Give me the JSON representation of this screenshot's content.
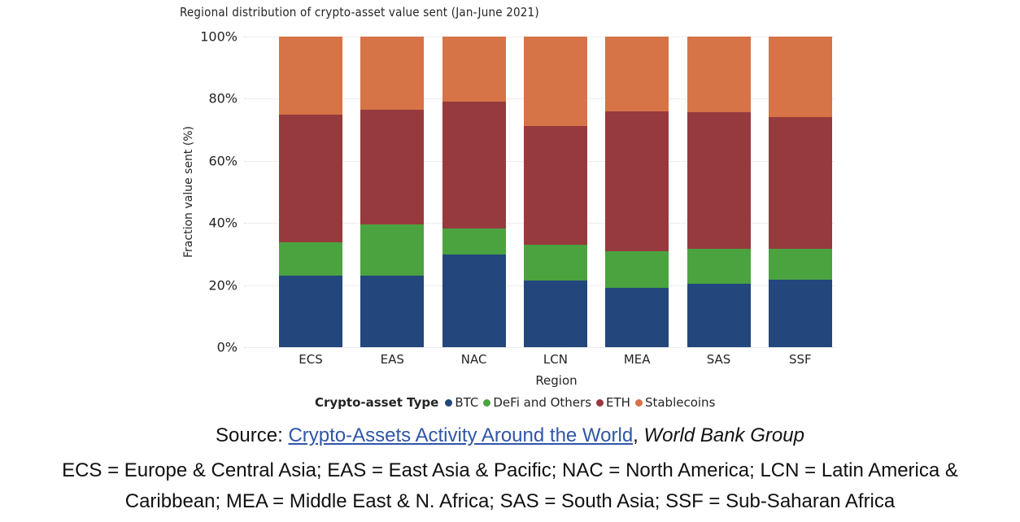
{
  "chart_data": {
    "type": "bar",
    "stacked": true,
    "percent_stacked": true,
    "title": "Regional distribution of crypto-asset value sent (Jan-June 2021)",
    "xlabel": "Region",
    "ylabel": "Fraction value sent (%)",
    "ylim": [
      0,
      100
    ],
    "yticks": [
      "0%",
      "20%",
      "40%",
      "60%",
      "80%",
      "100%"
    ],
    "grid": true,
    "legend_position": "bottom",
    "legend_title": "Crypto-asset Type",
    "categories": [
      "ECS",
      "EAS",
      "NAC",
      "LCN",
      "MEA",
      "SAS",
      "SSF"
    ],
    "series": [
      {
        "name": "BTC",
        "color": "#23477C",
        "values": [
          23.0,
          23.0,
          29.8,
          21.5,
          19.1,
          20.4,
          21.7
        ]
      },
      {
        "name": "DeFi and Others",
        "color": "#4BA33F",
        "values": [
          10.8,
          16.5,
          8.4,
          11.5,
          11.8,
          11.3,
          10.0
        ]
      },
      {
        "name": "ETH",
        "color": "#963A3E",
        "values": [
          41.1,
          36.9,
          40.9,
          38.2,
          45.0,
          44.0,
          42.4
        ]
      },
      {
        "name": "Stablecoins",
        "color": "#D67347",
        "values": [
          25.1,
          23.6,
          20.9,
          28.8,
          24.1,
          24.3,
          25.9
        ]
      }
    ]
  },
  "caption": {
    "source_prefix": "Source: ",
    "source_link": "Crypto-Assets Activity Around the World",
    "source_suffix_sep": ", ",
    "source_org": "World Bank Group",
    "legend_line1": "ECS = Europe & Central Asia; EAS = East Asia & Pacific; NAC = North America; LCN = Latin America &",
    "legend_line2": "Caribbean; MEA = Middle East & N. Africa; SAS = South Asia; SSF = Sub-Saharan Africa"
  }
}
